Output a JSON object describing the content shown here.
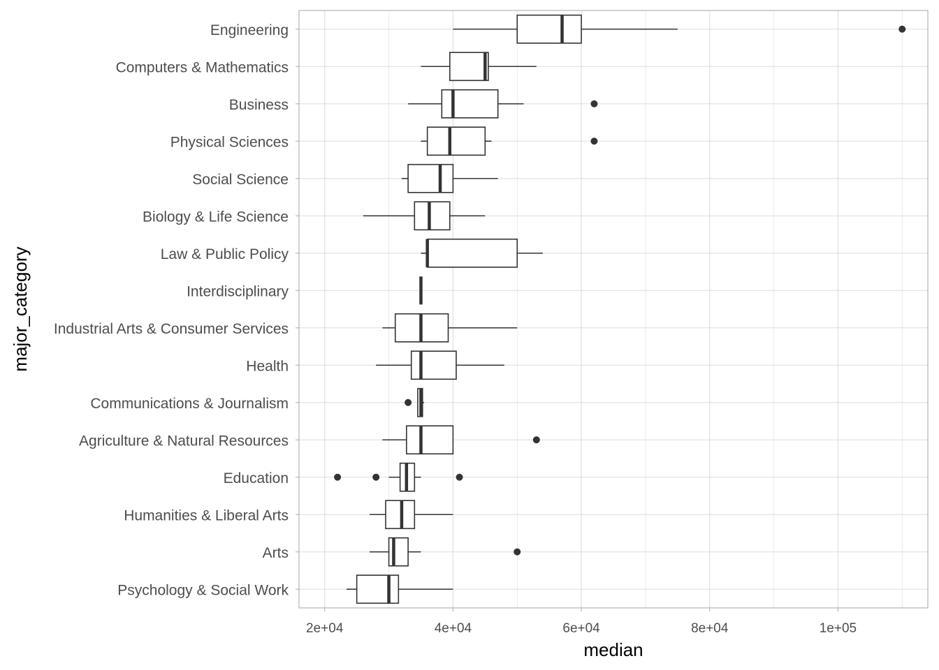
{
  "chart_data": {
    "type": "boxplot",
    "orientation": "horizontal",
    "xlabel": "median",
    "ylabel": "major_category",
    "xlim": [
      16000,
      114000
    ],
    "xticks": [
      20000,
      40000,
      60000,
      80000,
      100000
    ],
    "xtick_labels": [
      "2e+04",
      "4e+04",
      "6e+04",
      "8e+04",
      "1e+05"
    ],
    "grid": true,
    "theme": "light",
    "colors": {
      "box_outline": "#333333",
      "grid": "#dedede",
      "panel_border": "#b3b3b3",
      "outlier": "#333333"
    },
    "categories": [
      "Engineering",
      "Computers & Mathematics",
      "Business",
      "Physical Sciences",
      "Social Science",
      "Biology & Life Science",
      "Law & Public Policy",
      "Interdisciplinary",
      "Industrial Arts & Consumer Services",
      "Health",
      "Communications & Journalism",
      "Agriculture & Natural Resources",
      "Education",
      "Humanities & Liberal Arts",
      "Arts",
      "Psychology & Social Work"
    ],
    "boxes": [
      {
        "category": "Engineering",
        "whisker_low": 40000,
        "q1": 50000,
        "median": 57000,
        "q3": 60000,
        "whisker_high": 75000,
        "outliers": [
          110000
        ]
      },
      {
        "category": "Computers & Mathematics",
        "whisker_low": 35000,
        "q1": 39500,
        "median": 45000,
        "q3": 45500,
        "whisker_high": 53000,
        "outliers": []
      },
      {
        "category": "Business",
        "whisker_low": 33000,
        "q1": 38250,
        "median": 40000,
        "q3": 47000,
        "whisker_high": 51000,
        "outliers": [
          62000
        ]
      },
      {
        "category": "Physical Sciences",
        "whisker_low": 35000,
        "q1": 36000,
        "median": 39500,
        "q3": 45000,
        "whisker_high": 46000,
        "outliers": [
          62000
        ]
      },
      {
        "category": "Social Science",
        "whisker_low": 32000,
        "q1": 33000,
        "median": 38000,
        "q3": 40000,
        "whisker_high": 47000,
        "outliers": []
      },
      {
        "category": "Biology & Life Science",
        "whisker_low": 26000,
        "q1": 34000,
        "median": 36300,
        "q3": 39500,
        "whisker_high": 45000,
        "outliers": []
      },
      {
        "category": "Law & Public Policy",
        "whisker_low": 35000,
        "q1": 36000,
        "median": 36000,
        "q3": 50000,
        "whisker_high": 54000,
        "outliers": []
      },
      {
        "category": "Interdisciplinary",
        "whisker_low": 35000,
        "q1": 35000,
        "median": 35000,
        "q3": 35000,
        "whisker_high": 35000,
        "outliers": []
      },
      {
        "category": "Industrial Arts & Consumer Services",
        "whisker_low": 29000,
        "q1": 31000,
        "median": 35000,
        "q3": 39250,
        "whisker_high": 50000,
        "outliers": []
      },
      {
        "category": "Health",
        "whisker_low": 28000,
        "q1": 33500,
        "median": 35000,
        "q3": 40500,
        "whisker_high": 48000,
        "outliers": []
      },
      {
        "category": "Communications & Journalism",
        "whisker_low": 34500,
        "q1": 34500,
        "median": 35000,
        "q3": 35250,
        "whisker_high": 35500,
        "outliers": [
          33000
        ]
      },
      {
        "category": "Agriculture & Natural Resources",
        "whisker_low": 29000,
        "q1": 32750,
        "median": 35000,
        "q3": 40000,
        "whisker_high": 40000,
        "outliers": [
          53000
        ]
      },
      {
        "category": "Education",
        "whisker_low": 30000,
        "q1": 31750,
        "median": 32750,
        "q3": 34000,
        "whisker_high": 35000,
        "outliers": [
          22000,
          28000,
          41000
        ]
      },
      {
        "category": "Humanities & Liberal Arts",
        "whisker_low": 27000,
        "q1": 29500,
        "median": 32000,
        "q3": 34000,
        "whisker_high": 40000,
        "outliers": []
      },
      {
        "category": "Arts",
        "whisker_low": 27000,
        "q1": 30000,
        "median": 30750,
        "q3": 33000,
        "whisker_high": 35000,
        "outliers": [
          50000
        ]
      },
      {
        "category": "Psychology & Social Work",
        "whisker_low": 23400,
        "q1": 25000,
        "median": 30000,
        "q3": 31500,
        "whisker_high": 40000,
        "outliers": []
      }
    ]
  }
}
